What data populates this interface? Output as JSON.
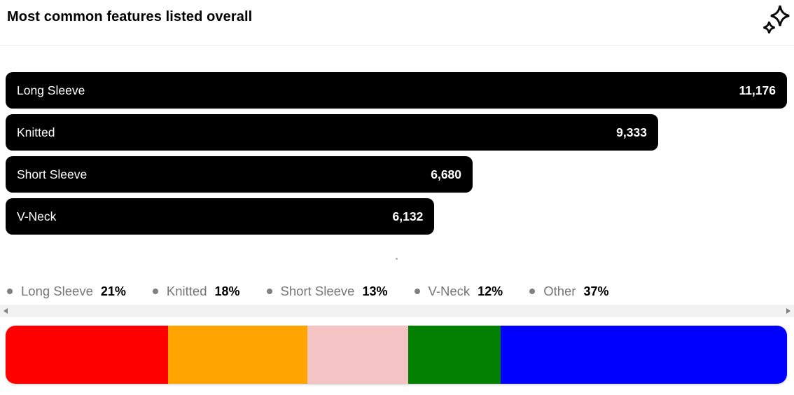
{
  "header": {
    "title": "Most common features listed overall",
    "icon": "sparkles-icon"
  },
  "bar_chart": {
    "max_value": 11176,
    "bar_color": "#000000",
    "text_color": "#ffffff",
    "bars": [
      {
        "label": "Long Sleeve",
        "value": 11176,
        "value_display": "11,176"
      },
      {
        "label": "Knitted",
        "value": 9333,
        "value_display": "9,333"
      },
      {
        "label": "Short Sleeve",
        "value": 6680,
        "value_display": "6,680"
      },
      {
        "label": "V-Neck",
        "value": 6132,
        "value_display": "6,132"
      }
    ]
  },
  "legend": {
    "label_color": "#767676",
    "items": [
      {
        "label": "Long Sleeve",
        "pct": "21%"
      },
      {
        "label": "Knitted",
        "pct": "18%"
      },
      {
        "label": "Short Sleeve",
        "pct": "13%"
      },
      {
        "label": "V-Neck",
        "pct": "12%"
      },
      {
        "label": "Other",
        "pct": "37%"
      }
    ]
  },
  "colorbar": {
    "segments": [
      {
        "name": "Long Sleeve",
        "pct": 21,
        "color": "#fe0000"
      },
      {
        "name": "Knitted",
        "pct": 18,
        "color": "#ffa502"
      },
      {
        "name": "Short Sleeve",
        "pct": 13,
        "color": "#f4c3c4"
      },
      {
        "name": "V-Neck",
        "pct": 12,
        "color": "#018001"
      },
      {
        "name": "Other",
        "pct": 37,
        "color": "#0000fe"
      }
    ]
  },
  "chart_data": [
    {
      "type": "bar",
      "orientation": "horizontal",
      "title": "Most common features listed overall",
      "categories": [
        "Long Sleeve",
        "Knitted",
        "Short Sleeve",
        "V-Neck"
      ],
      "values": [
        11176,
        9333,
        6680,
        6132
      ],
      "data_labels": [
        "11,176",
        "9,333",
        "6,680",
        "6,132"
      ],
      "bar_color": "#000000",
      "xlim": [
        0,
        11176
      ],
      "grid": false,
      "axes_hidden": true
    },
    {
      "type": "area",
      "subtype": "100pct-stacked-single-bar",
      "categories": [
        "Long Sleeve",
        "Knitted",
        "Short Sleeve",
        "V-Neck",
        "Other"
      ],
      "values": [
        21,
        18,
        13,
        12,
        37
      ],
      "unit": "%",
      "colors": [
        "#fe0000",
        "#ffa502",
        "#f4c3c4",
        "#018001",
        "#0000fe"
      ],
      "legend_position": "top",
      "legend_labels": [
        "Long Sleeve 21%",
        "Knitted 18%",
        "Short Sleeve 13%",
        "V-Neck 12%",
        "Other 37%"
      ]
    }
  ]
}
